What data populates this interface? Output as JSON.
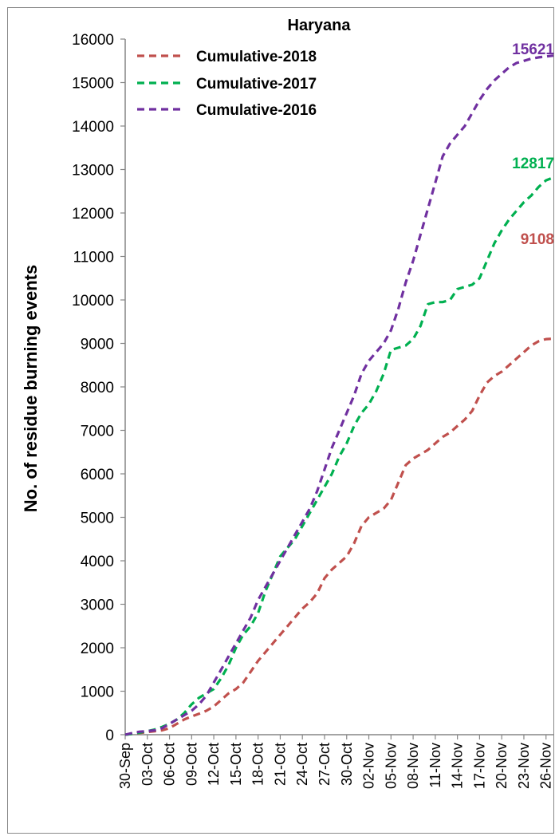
{
  "chart_data": {
    "type": "line",
    "title": "Haryana",
    "ylabel": "No. of residue burning events",
    "xlabel": "",
    "ylim": [
      0,
      16000
    ],
    "yticks": [
      0,
      1000,
      2000,
      3000,
      4000,
      5000,
      6000,
      7000,
      8000,
      9000,
      10000,
      11000,
      12000,
      13000,
      14000,
      15000,
      16000
    ],
    "x_tick_labels": [
      "30-Sep",
      "03-Oct",
      "06-Oct",
      "09-Oct",
      "12-Oct",
      "15-Oct",
      "18-Oct",
      "21-Oct",
      "24-Oct",
      "27-Oct",
      "30-Oct",
      "02-Nov",
      "05-Nov",
      "08-Nov",
      "11-Nov",
      "14-Nov",
      "17-Nov",
      "20-Nov",
      "23-Nov",
      "26-Nov"
    ],
    "x_dates": [
      "30-Sep",
      "01-Oct",
      "02-Oct",
      "03-Oct",
      "04-Oct",
      "05-Oct",
      "06-Oct",
      "07-Oct",
      "08-Oct",
      "09-Oct",
      "10-Oct",
      "11-Oct",
      "12-Oct",
      "13-Oct",
      "14-Oct",
      "15-Oct",
      "16-Oct",
      "17-Oct",
      "18-Oct",
      "19-Oct",
      "20-Oct",
      "21-Oct",
      "22-Oct",
      "23-Oct",
      "24-Oct",
      "25-Oct",
      "26-Oct",
      "27-Oct",
      "28-Oct",
      "29-Oct",
      "30-Oct",
      "31-Oct",
      "01-Nov",
      "02-Nov",
      "03-Nov",
      "04-Nov",
      "05-Nov",
      "06-Nov",
      "07-Nov",
      "08-Nov",
      "09-Nov",
      "10-Nov",
      "11-Nov",
      "12-Nov",
      "13-Nov",
      "14-Nov",
      "15-Nov",
      "16-Nov",
      "17-Nov",
      "18-Nov",
      "19-Nov",
      "20-Nov",
      "21-Nov",
      "22-Nov",
      "23-Nov",
      "24-Nov",
      "25-Nov",
      "26-Nov",
      "27-Nov"
    ],
    "legend_position": "top-left",
    "grid": false,
    "series": [
      {
        "name": "Cumulative-2018",
        "color": "#c0504d",
        "end_label": "9108",
        "values": [
          0,
          20,
          40,
          60,
          80,
          100,
          150,
          250,
          350,
          420,
          480,
          550,
          650,
          800,
          950,
          1050,
          1200,
          1450,
          1700,
          1900,
          2100,
          2300,
          2500,
          2700,
          2900,
          3050,
          3250,
          3600,
          3800,
          3950,
          4100,
          4400,
          4800,
          5000,
          5100,
          5200,
          5400,
          5800,
          6200,
          6350,
          6450,
          6550,
          6700,
          6850,
          6950,
          7100,
          7250,
          7450,
          7800,
          8100,
          8250,
          8350,
          8500,
          8650,
          8800,
          8950,
          9050,
          9100,
          9108
        ]
      },
      {
        "name": "Cumulative-2017",
        "color": "#00b050",
        "end_label": "12817",
        "values": [
          0,
          20,
          50,
          80,
          120,
          180,
          250,
          350,
          500,
          700,
          850,
          950,
          1050,
          1300,
          1600,
          2000,
          2300,
          2500,
          2800,
          3300,
          3700,
          4100,
          4300,
          4500,
          4800,
          5100,
          5400,
          5700,
          6000,
          6400,
          6700,
          7100,
          7400,
          7600,
          7900,
          8300,
          8850,
          8900,
          8950,
          9100,
          9400,
          9900,
          9950,
          9950,
          10000,
          10250,
          10300,
          10350,
          10500,
          10900,
          11300,
          11600,
          11850,
          12050,
          12250,
          12400,
          12600,
          12750,
          12817
        ]
      },
      {
        "name": "Cumulative-2016",
        "color": "#7030a0",
        "end_label": "15621",
        "values": [
          0,
          40,
          70,
          80,
          100,
          150,
          250,
          350,
          450,
          550,
          700,
          900,
          1200,
          1500,
          1800,
          2100,
          2400,
          2700,
          3100,
          3400,
          3700,
          4000,
          4300,
          4600,
          4900,
          5200,
          5600,
          6100,
          6600,
          7000,
          7400,
          7800,
          8300,
          8600,
          8800,
          9000,
          9300,
          9800,
          10400,
          10900,
          11500,
          12100,
          12700,
          13300,
          13600,
          13800,
          14000,
          14300,
          14600,
          14850,
          15050,
          15200,
          15350,
          15450,
          15500,
          15550,
          15580,
          15600,
          15621
        ]
      }
    ]
  }
}
